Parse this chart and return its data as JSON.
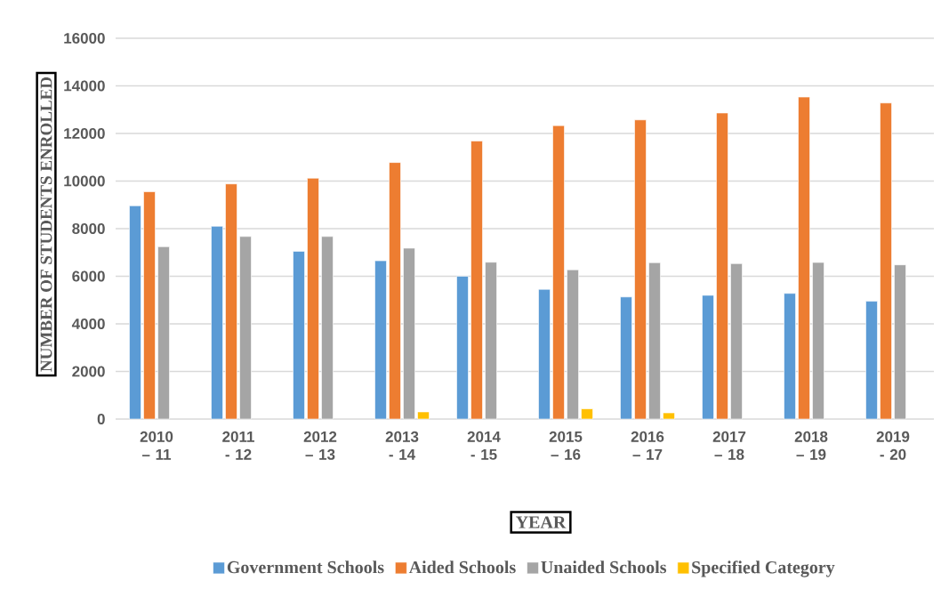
{
  "chart_data": {
    "type": "bar",
    "xlabel": "YEAR",
    "ylabel": "NUMBER OF STUDENTS ENROLLED",
    "categories": [
      "2010 – 11",
      "2011 - 12",
      "2012 – 13",
      "2013 - 14",
      "2014 - 15",
      "2015 – 16",
      "2016 – 17",
      "2017 – 18",
      "2018 – 19",
      "2019 - 20"
    ],
    "series": [
      {
        "name": "Government Schools",
        "color": "#5b9bd5",
        "values": [
          8960,
          8100,
          7050,
          6650,
          6000,
          5450,
          5130,
          5200,
          5280,
          4950
        ]
      },
      {
        "name": "Aided Schools",
        "color": "#ed7d31",
        "values": [
          9550,
          9880,
          10120,
          10780,
          11680,
          12330,
          12570,
          12860,
          13530,
          13280
        ]
      },
      {
        "name": "Unaided Schools",
        "color": "#a5a5a5",
        "values": [
          7240,
          7670,
          7670,
          7180,
          6590,
          6270,
          6570,
          6530,
          6580,
          6480
        ]
      },
      {
        "name": "Specified Category",
        "color": "#ffc000",
        "values": [
          null,
          null,
          null,
          300,
          null,
          430,
          260,
          null,
          null,
          null
        ]
      }
    ],
    "ylim": [
      0,
      16000
    ],
    "yticks": [
      0,
      2000,
      4000,
      6000,
      8000,
      10000,
      12000,
      14000,
      16000
    ],
    "grid": "y",
    "legend": "bottom"
  }
}
